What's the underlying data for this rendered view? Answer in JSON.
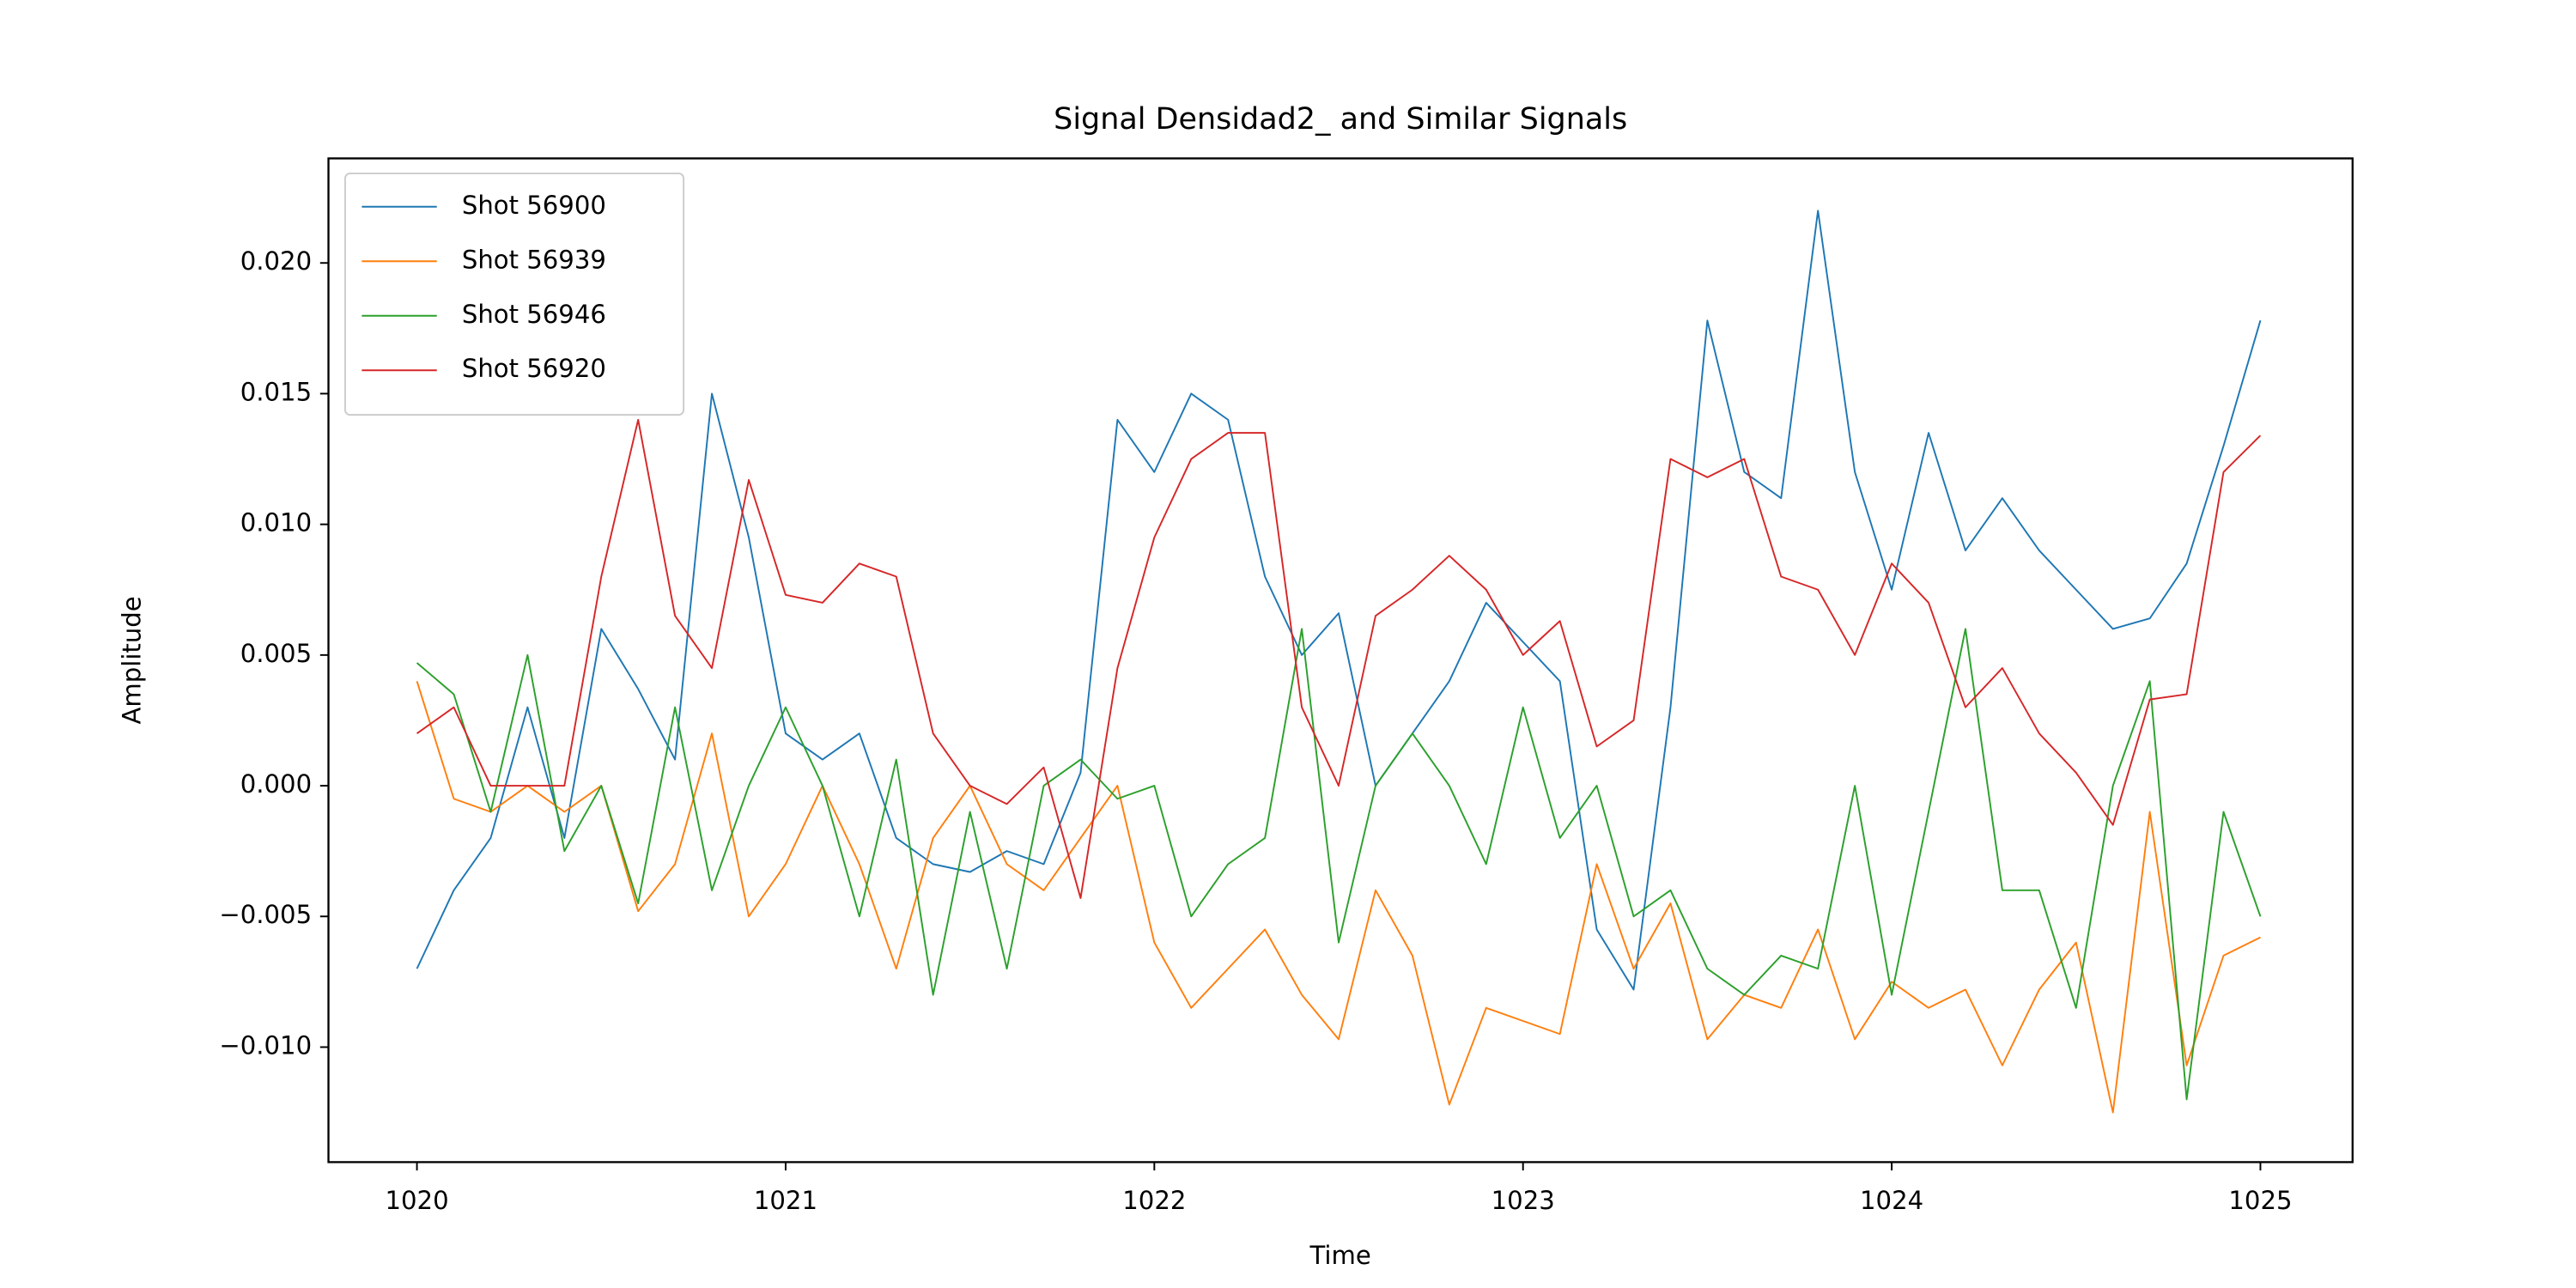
{
  "chart_data": {
    "type": "line",
    "title": "Signal Densidad2_ and Similar Signals",
    "x_label": "Time",
    "y_label": "Amplitude",
    "x": [
      1020,
      1020.1,
      1020.2,
      1020.3,
      1020.4,
      1020.5,
      1020.6,
      1020.7,
      1020.8,
      1020.9,
      1021,
      1021.1,
      1021.2,
      1021.3,
      1021.4,
      1021.5,
      1021.6,
      1021.7,
      1021.8,
      1021.9,
      1022,
      1022.1,
      1022.2,
      1022.3,
      1022.4,
      1022.5,
      1022.6,
      1022.7,
      1022.8,
      1022.9,
      1023,
      1023.1,
      1023.2,
      1023.3,
      1023.4,
      1023.5,
      1023.6,
      1023.7,
      1023.8,
      1023.9,
      1024,
      1024.1,
      1024.2,
      1024.3,
      1024.4,
      1024.5,
      1024.6,
      1024.7,
      1024.8,
      1024.9,
      1025
    ],
    "series": [
      {
        "name": "Shot 56900",
        "color": "#1f77b4",
        "values": [
          -0.007,
          -0.004,
          -0.002,
          0.003,
          -0.002,
          0.006,
          0.0037,
          0.001,
          0.015,
          0.0095,
          0.002,
          0.001,
          0.002,
          -0.002,
          -0.003,
          -0.0033,
          -0.0025,
          -0.003,
          0.0005,
          0.014,
          0.012,
          0.015,
          0.014,
          0.008,
          0.005,
          0.0066,
          0.0,
          0.002,
          0.004,
          0.007,
          0.0055,
          0.004,
          -0.0055,
          -0.0078,
          0.003,
          0.0178,
          0.012,
          0.011,
          0.022,
          0.012,
          0.0075,
          0.0135,
          0.009,
          0.011,
          0.009,
          0.0075,
          0.006,
          0.0064,
          0.0085,
          0.013,
          0.0178
        ]
      },
      {
        "name": "Shot 56939",
        "color": "#ff7f0e",
        "values": [
          0.004,
          -0.0005,
          -0.001,
          0.0,
          -0.001,
          0.0,
          -0.0048,
          -0.003,
          0.002,
          -0.005,
          -0.003,
          0.0,
          -0.003,
          -0.007,
          -0.002,
          0.0,
          -0.003,
          -0.004,
          -0.002,
          0.0,
          -0.006,
          -0.0085,
          -0.007,
          -0.0055,
          -0.008,
          -0.0097,
          -0.004,
          -0.0065,
          -0.0122,
          -0.0085,
          -0.009,
          -0.0095,
          -0.003,
          -0.007,
          -0.0045,
          -0.0097,
          -0.008,
          -0.0085,
          -0.0055,
          -0.0097,
          -0.0075,
          -0.0085,
          -0.0078,
          -0.0107,
          -0.0078,
          -0.006,
          -0.0125,
          -0.001,
          -0.0107,
          -0.0065,
          -0.0058
        ]
      },
      {
        "name": "Shot 56946",
        "color": "#2ca02c",
        "values": [
          0.0047,
          0.0035,
          -0.001,
          0.005,
          -0.0025,
          0.0,
          -0.0045,
          0.003,
          -0.004,
          0.0,
          0.003,
          0.0,
          -0.005,
          0.001,
          -0.008,
          -0.001,
          -0.007,
          0.0,
          0.001,
          -0.0005,
          0.0,
          -0.005,
          -0.003,
          -0.002,
          0.006,
          -0.006,
          0.0,
          0.002,
          0.0,
          -0.003,
          0.003,
          -0.002,
          0.0,
          -0.005,
          -0.004,
          -0.007,
          -0.008,
          -0.0065,
          -0.007,
          0.0,
          -0.008,
          -0.001,
          0.006,
          -0.004,
          -0.004,
          -0.0085,
          0.0,
          0.004,
          -0.012,
          -0.001,
          -0.005
        ]
      },
      {
        "name": "Shot 56920",
        "color": "#d62728",
        "values": [
          0.002,
          0.003,
          0.0,
          0.0,
          0.0,
          0.008,
          0.014,
          0.0065,
          0.0045,
          0.0117,
          0.0073,
          0.007,
          0.0085,
          0.008,
          0.002,
          0.0,
          -0.0007,
          0.0007,
          -0.0043,
          0.0045,
          0.0095,
          0.0125,
          0.0135,
          0.0135,
          0.003,
          0.0,
          0.0065,
          0.0075,
          0.0088,
          0.0075,
          0.005,
          0.0063,
          0.0015,
          0.0025,
          0.0125,
          0.0118,
          0.0125,
          0.008,
          0.0075,
          0.005,
          0.0085,
          0.007,
          0.003,
          0.0045,
          0.002,
          0.0005,
          -0.0015,
          0.0033,
          0.0035,
          0.012,
          0.0134
        ]
      }
    ],
    "xlim": [
      1019.76,
      1025.25
    ],
    "ylim": [
      -0.0144,
      0.024
    ],
    "xticks": [
      1020,
      1021,
      1022,
      1023,
      1024,
      1025
    ],
    "yticks": [
      {
        "value": -0.01,
        "label": "−0.010"
      },
      {
        "value": -0.005,
        "label": "−0.005"
      },
      {
        "value": 0,
        "label": "0.000"
      },
      {
        "value": 0.005,
        "label": "0.005"
      },
      {
        "value": 0.01,
        "label": "0.010"
      },
      {
        "value": 0.015,
        "label": "0.015"
      },
      {
        "value": 0.02,
        "label": "0.020"
      }
    ],
    "legend": "upper left"
  }
}
